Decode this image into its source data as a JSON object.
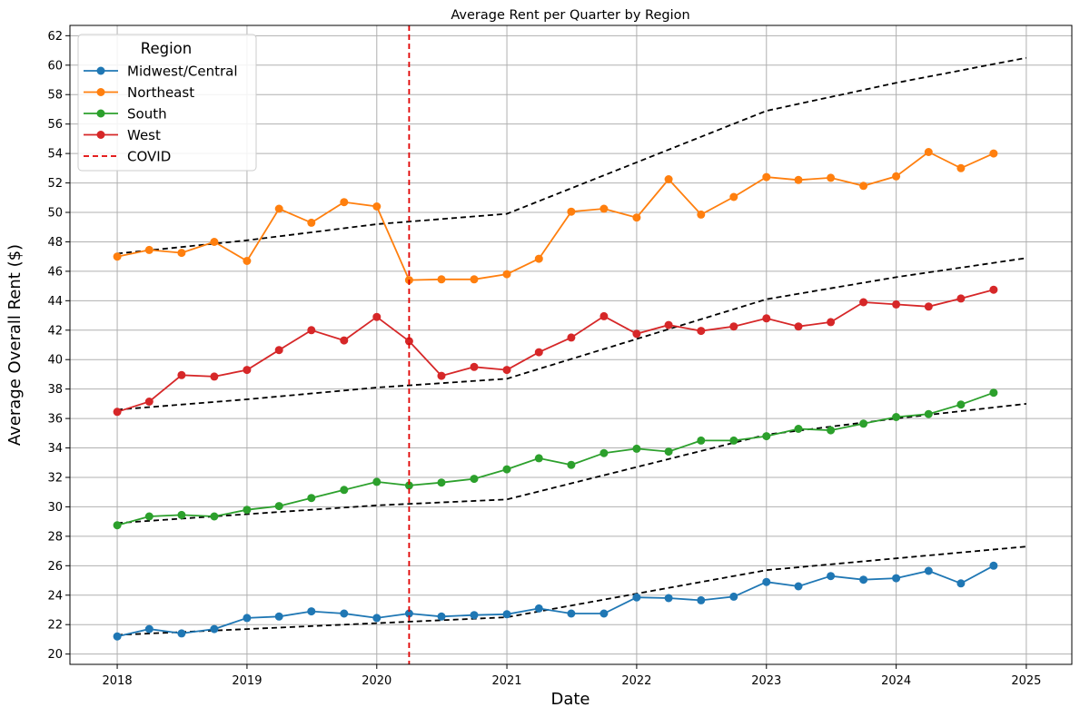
{
  "chart_data": {
    "type": "line",
    "title": "Average Rent per Quarter by Region",
    "xlabel": "Date",
    "ylabel": "Average Overall Rent ($)",
    "xlim": [
      "2017-08-21",
      "2025-05-09"
    ],
    "ylim": [
      19.3,
      62.7
    ],
    "x_ticks": [
      "2018-01-01",
      "2019-01-01",
      "2020-01-01",
      "2021-01-01",
      "2022-01-01",
      "2023-01-01",
      "2024-01-01",
      "2025-01-01"
    ],
    "x_tick_labels": [
      "2018",
      "2019",
      "2020",
      "2021",
      "2022",
      "2023",
      "2024",
      "2025"
    ],
    "y_ticks": [
      20,
      22,
      24,
      26,
      28,
      30,
      32,
      34,
      36,
      38,
      40,
      42,
      44,
      46,
      48,
      50,
      52,
      54,
      56,
      58,
      60,
      62
    ],
    "grid": true,
    "legend_position": "upper-left",
    "legend_title": "Region",
    "x": [
      "2018-01-01",
      "2018-04-01",
      "2018-07-01",
      "2018-10-01",
      "2019-01-01",
      "2019-04-01",
      "2019-07-01",
      "2019-10-01",
      "2020-01-01",
      "2020-04-01",
      "2020-07-01",
      "2020-10-01",
      "2021-01-01",
      "2021-04-01",
      "2021-07-01",
      "2021-10-01",
      "2022-01-01",
      "2022-04-01",
      "2022-07-01",
      "2022-10-01",
      "2023-01-01",
      "2023-04-01",
      "2023-07-01",
      "2023-10-01",
      "2024-01-01",
      "2024-04-01",
      "2024-07-01",
      "2024-10-01"
    ],
    "series": [
      {
        "name": "Midwest/Central",
        "color": "#1f77b4",
        "values": [
          21.2,
          21.7,
          21.4,
          21.7,
          22.45,
          22.55,
          22.9,
          22.75,
          22.45,
          22.75,
          22.55,
          22.65,
          22.7,
          23.1,
          22.75,
          22.75,
          23.85,
          23.8,
          23.65,
          23.9,
          24.9,
          24.6,
          25.3,
          25.05,
          25.15,
          25.65,
          24.8,
          26.0
        ]
      },
      {
        "name": "Northeast",
        "color": "#ff7f0e",
        "values": [
          47.0,
          47.45,
          47.25,
          48.0,
          46.7,
          50.25,
          49.3,
          50.7,
          50.4,
          45.4,
          45.45,
          45.45,
          45.8,
          46.85,
          50.05,
          50.25,
          49.65,
          52.25,
          49.85,
          51.05,
          52.4,
          52.2,
          52.35,
          51.8,
          52.45,
          54.1,
          53.0,
          54.0
        ]
      },
      {
        "name": "South",
        "color": "#2ca02c",
        "values": [
          28.75,
          29.35,
          29.45,
          29.35,
          29.8,
          30.05,
          30.6,
          31.15,
          31.7,
          31.45,
          31.65,
          31.9,
          32.55,
          33.3,
          32.85,
          33.65,
          33.95,
          33.75,
          34.5,
          34.5,
          34.8,
          35.3,
          35.2,
          35.65,
          36.1,
          36.3,
          36.95,
          37.75
        ]
      },
      {
        "name": "West",
        "color": "#d62728",
        "values": [
          36.45,
          37.15,
          38.95,
          38.85,
          39.3,
          40.65,
          42.0,
          41.3,
          42.9,
          41.25,
          38.9,
          39.5,
          39.3,
          40.5,
          41.5,
          42.95,
          41.75,
          42.35,
          41.95,
          42.25,
          42.8,
          42.25,
          42.55,
          43.9,
          43.75,
          43.6,
          44.15,
          44.75
        ]
      }
    ],
    "trend_lines": [
      {
        "color": "#000000",
        "x": [
          "2018-01-01",
          "2019-01-01",
          "2020-01-01",
          "2021-01-01",
          "2022-01-01",
          "2023-01-01",
          "2024-01-01",
          "2025-01-01"
        ],
        "values": [
          21.3,
          21.7,
          22.1,
          22.5,
          24.1,
          25.7,
          26.5,
          27.3
        ]
      },
      {
        "color": "#000000",
        "x": [
          "2018-01-01",
          "2019-01-01",
          "2020-01-01",
          "2021-01-01",
          "2022-01-01",
          "2023-01-01",
          "2024-01-01",
          "2025-01-01"
        ],
        "values": [
          28.9,
          29.5,
          30.1,
          30.5,
          32.7,
          34.9,
          36.0,
          37.0
        ]
      },
      {
        "color": "#000000",
        "x": [
          "2018-01-01",
          "2019-01-01",
          "2020-01-01",
          "2021-01-01",
          "2022-01-01",
          "2023-01-01",
          "2024-01-01",
          "2025-01-01"
        ],
        "values": [
          36.6,
          37.3,
          38.1,
          38.7,
          41.4,
          44.1,
          45.6,
          46.9
        ]
      },
      {
        "color": "#000000",
        "x": [
          "2018-01-01",
          "2019-01-01",
          "2020-01-01",
          "2021-01-01",
          "2022-01-01",
          "2023-01-01",
          "2024-01-01",
          "2025-01-01"
        ],
        "values": [
          47.2,
          48.1,
          49.2,
          49.9,
          53.4,
          56.9,
          58.8,
          60.5
        ]
      }
    ],
    "vline": {
      "label": "COVID",
      "x": "2020-04-01",
      "color": "#e00000"
    }
  }
}
